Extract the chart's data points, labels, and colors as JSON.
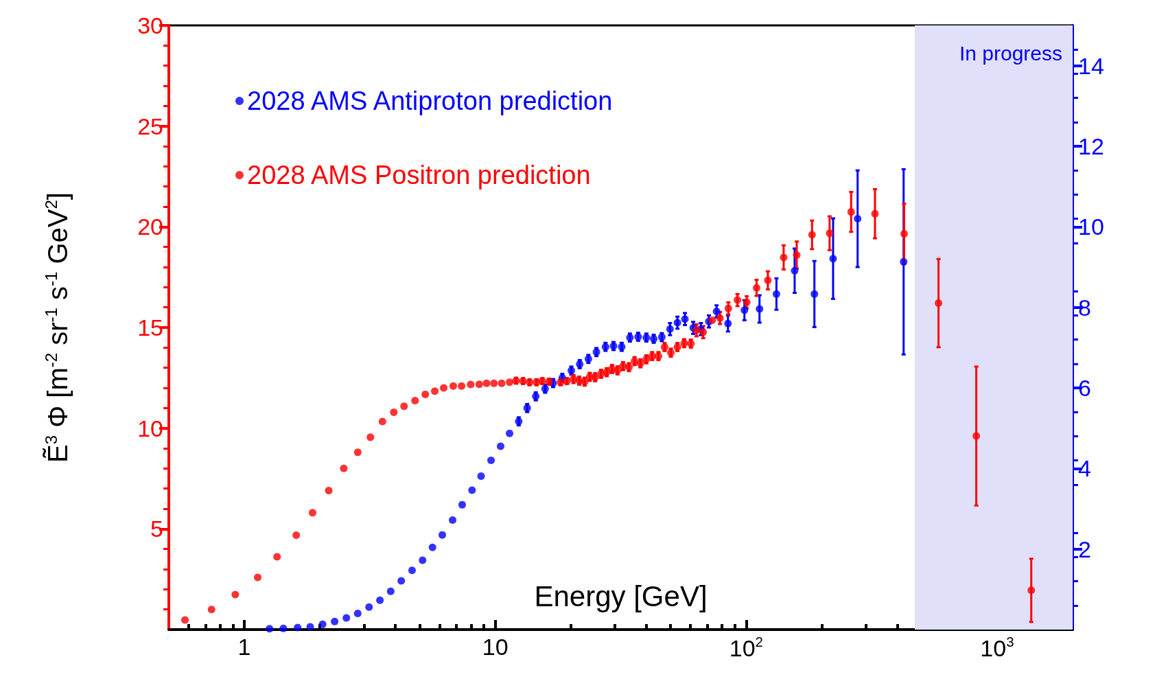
{
  "chart_data": {
    "type": "scatter",
    "xlabel": "Energy [GeV]",
    "ylabel": "Ẽ$^{3}$ Φ [m$^{-2}$ sr$^{-1}$ s$^{-1}$ GeV$^{2}$]",
    "log": "x",
    "xlim": [
      0.5,
      2000
    ],
    "xticks": [
      1,
      10,
      {
        "value": 100,
        "label": "10$^{2}$"
      },
      {
        "value": 1000,
        "label": "10$^{3}$"
      }
    ],
    "ylim": [
      0,
      30
    ],
    "yticks": [
      5,
      10,
      15,
      20,
      25,
      30
    ],
    "y2lim": [
      0,
      15
    ],
    "y2ticks": [
      2,
      4,
      6,
      8,
      10,
      12,
      14
    ],
    "grid": false,
    "legend": "top left",
    "marker": "circle",
    "bands": [
      {
        "axis": "x",
        "from": 470,
        "to": 2000,
        "label": "In progress",
        "color": "#e0e0fa"
      }
    ],
    "series": [
      {
        "name": "2028 AMS Antiproton prediction",
        "color": "#0000ff",
        "axis": "y2",
        "x": [
          1.26,
          1.43,
          1.63,
          1.83,
          2.05,
          2.29,
          2.55,
          2.83,
          3.14,
          3.47,
          3.83,
          4.22,
          4.66,
          5.13,
          5.62,
          6.15,
          6.76,
          7.38,
          8.08,
          8.78,
          9.62,
          10.5,
          11.4,
          12.4,
          13.4,
          14.5,
          15.8,
          17.0,
          18.5,
          20.1,
          21.7,
          23.5,
          25.3,
          27.5,
          29.6,
          31.9,
          34.4,
          37.1,
          40.0,
          42.8,
          46.1,
          49.7,
          53.2,
          57,
          61.5,
          66,
          71,
          76.2,
          84.6,
          98.4,
          113,
          132,
          156,
          187,
          222,
          278,
          424
        ],
        "values": [
          0.02,
          0.03,
          0.05,
          0.07,
          0.13,
          0.2,
          0.29,
          0.4,
          0.56,
          0.73,
          0.95,
          1.21,
          1.47,
          1.72,
          2.04,
          2.35,
          2.72,
          3.1,
          3.46,
          3.81,
          4.2,
          4.55,
          4.87,
          5.17,
          5.5,
          5.79,
          5.98,
          6.12,
          6.25,
          6.43,
          6.59,
          6.72,
          6.89,
          7.02,
          7.04,
          7.02,
          7.25,
          7.27,
          7.25,
          7.22,
          7.26,
          7.46,
          7.62,
          7.71,
          7.49,
          7.46,
          7.65,
          7.9,
          7.6,
          7.93,
          7.96,
          8.33,
          8.91,
          8.33,
          9.21,
          10.2,
          9.13
        ],
        "errors": [
          null,
          null,
          null,
          null,
          null,
          null,
          null,
          null,
          null,
          null,
          null,
          null,
          null,
          null,
          null,
          null,
          null,
          null,
          null,
          null,
          null,
          null,
          null,
          0.1,
          0.1,
          0.1,
          0.1,
          0.1,
          0.1,
          0.1,
          0.1,
          0.1,
          0.1,
          0.1,
          0.1,
          0.1,
          0.1,
          0.1,
          0.1,
          0.1,
          0.1,
          0.15,
          0.15,
          0.15,
          0.15,
          0.15,
          0.15,
          0.15,
          0.2,
          0.25,
          0.34,
          0.39,
          0.55,
          0.82,
          1.0,
          1.2,
          2.3
        ]
      },
      {
        "name": "2028 AMS Positron prediction",
        "color": "#ff0000",
        "x": [
          0.58,
          0.74,
          0.92,
          1.13,
          1.35,
          1.61,
          1.87,
          2.17,
          2.49,
          2.83,
          3.18,
          3.55,
          3.94,
          4.33,
          4.79,
          5.26,
          5.74,
          6.23,
          6.8,
          7.34,
          7.98,
          8.63,
          9.23,
          9.88,
          10.6,
          11.4,
          12.1,
          12.9,
          13.7,
          14.6,
          15.4,
          16.4,
          18.2,
          19.3,
          20.5,
          21.6,
          22.7,
          23.8,
          25.0,
          26.4,
          27.8,
          29.2,
          30.7,
          32.3,
          34.1,
          35.9,
          37.9,
          40,
          42.2,
          44.7,
          47.3,
          50.1,
          53.2,
          56.6,
          60.2,
          63.4,
          67.4,
          73.2,
          78.6,
          84.9,
          92.3,
          100.5,
          110,
          122,
          141,
          159,
          183,
          215,
          262,
          326,
          426,
          584,
          826,
          1368
        ],
        "values": [
          0.48,
          1.0,
          1.74,
          2.59,
          3.61,
          4.69,
          5.8,
          6.9,
          8.0,
          8.8,
          9.55,
          10.33,
          10.79,
          11.09,
          11.37,
          11.68,
          11.84,
          12.0,
          12.09,
          12.09,
          12.17,
          12.18,
          12.23,
          12.23,
          12.23,
          12.28,
          12.36,
          12.34,
          12.28,
          12.28,
          12.34,
          12.31,
          12.28,
          12.34,
          12.44,
          12.36,
          12.31,
          12.55,
          12.53,
          12.7,
          12.78,
          12.94,
          12.87,
          13.08,
          13.03,
          13.33,
          13.22,
          13.42,
          13.58,
          13.58,
          14.03,
          13.75,
          14.03,
          14.22,
          14.2,
          14.86,
          14.77,
          15.36,
          15.47,
          15.95,
          16.36,
          16.25,
          16.97,
          17.34,
          18.48,
          18.6,
          19.6,
          19.68,
          20.74,
          20.65,
          19.65,
          16.21,
          9.61,
          1.95
        ],
        "errors": [
          null,
          null,
          null,
          null,
          null,
          null,
          null,
          null,
          null,
          null,
          null,
          null,
          null,
          null,
          null,
          null,
          null,
          null,
          null,
          null,
          null,
          null,
          null,
          null,
          null,
          null,
          0.15,
          0.15,
          0.15,
          0.15,
          0.15,
          0.15,
          0.15,
          0.15,
          0.2,
          0.2,
          0.2,
          0.2,
          0.2,
          0.2,
          0.2,
          0.2,
          0.2,
          0.2,
          0.2,
          0.2,
          0.2,
          0.2,
          0.2,
          0.2,
          0.2,
          0.2,
          0.2,
          0.2,
          0.2,
          0.3,
          0.3,
          null,
          0.3,
          0.3,
          0.3,
          0.3,
          0.4,
          0.45,
          0.6,
          0.67,
          0.71,
          0.84,
          0.99,
          1.22,
          1.5,
          2.19,
          3.45,
          1.57
        ]
      }
    ]
  }
}
